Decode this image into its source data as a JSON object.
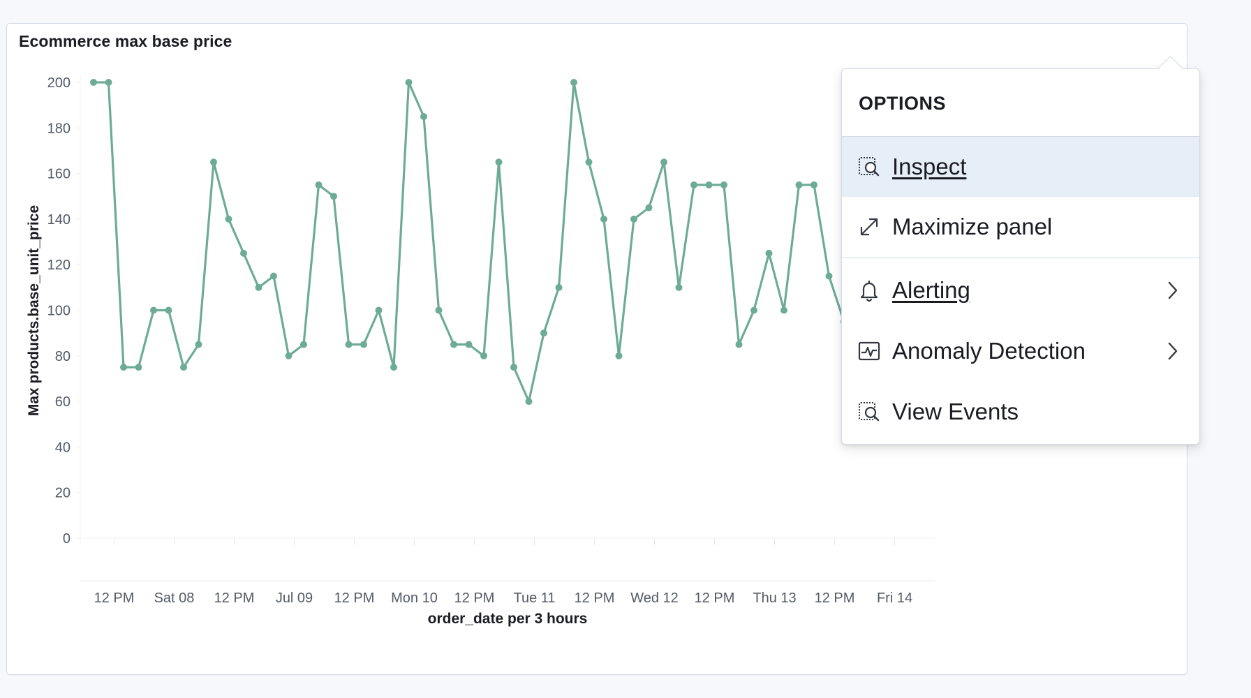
{
  "panel": {
    "title": "Ecommerce max base price"
  },
  "chart_data": {
    "type": "line",
    "title": "Ecommerce max base price",
    "xlabel": "order_date per 3 hours",
    "ylabel": "Max products.base_unit_price",
    "ylim": [
      0,
      200
    ],
    "yticks": [
      0,
      20,
      40,
      60,
      80,
      100,
      120,
      140,
      160,
      180,
      200
    ],
    "xlim": [
      0,
      57
    ],
    "xticks": [
      {
        "index": 1,
        "label": "12 PM"
      },
      {
        "index": 5,
        "label": "Sat 08"
      },
      {
        "index": 9,
        "label": "12 PM"
      },
      {
        "index": 13,
        "label": "Jul 09"
      },
      {
        "index": 17,
        "label": "12 PM"
      },
      {
        "index": 21,
        "label": "Mon 10"
      },
      {
        "index": 25,
        "label": "12 PM"
      },
      {
        "index": 29,
        "label": "Tue 11"
      },
      {
        "index": 33,
        "label": "12 PM"
      },
      {
        "index": 37,
        "label": "Wed 12"
      },
      {
        "index": 41,
        "label": "12 PM"
      },
      {
        "index": 45,
        "label": "Thu 13"
      },
      {
        "index": 49,
        "label": "12 PM"
      },
      {
        "index": 53,
        "label": "Fri 14"
      }
    ],
    "grid": false,
    "color": "#6dab97",
    "series": [
      {
        "values": [
          200,
          200,
          75,
          75,
          100,
          100,
          75,
          85,
          165,
          140,
          125,
          110,
          115,
          80,
          85,
          155,
          150,
          85,
          85,
          100,
          75,
          200,
          185,
          100,
          85,
          85,
          80,
          165,
          75,
          60,
          90,
          110,
          200,
          165,
          140,
          80,
          140,
          145,
          165,
          110,
          155,
          155,
          155,
          85,
          100,
          125,
          100,
          155,
          155,
          115,
          95
        ]
      }
    ]
  },
  "popover": {
    "title": "OPTIONS",
    "items": [
      {
        "label": "Inspect",
        "icon": "inspect-icon"
      },
      {
        "label": "Maximize panel",
        "icon": "expand-icon"
      },
      {
        "label": "Alerting",
        "icon": "bell-icon"
      },
      {
        "label": "Anomaly Detection",
        "icon": "anomaly-chart-icon"
      },
      {
        "label": "View Events",
        "icon": "inspect-icon"
      }
    ]
  }
}
